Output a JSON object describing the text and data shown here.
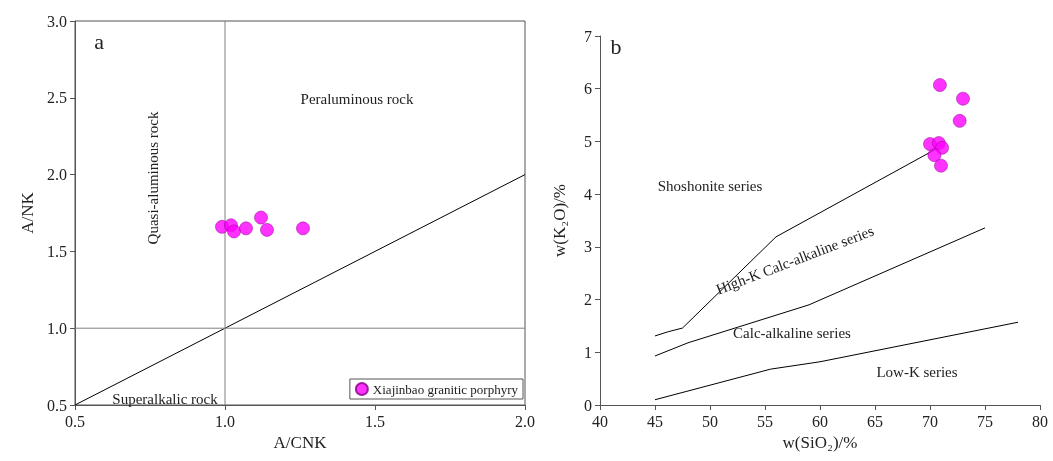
{
  "chart_data": [
    {
      "type": "scatter",
      "xlabel": "A/CNK",
      "ylabel": "A/NK",
      "xlim": [
        0.5,
        2.0
      ],
      "ylim": [
        0.5,
        3.0
      ],
      "xticks": [
        {
          "value": 0.5,
          "label": "0.5"
        },
        {
          "value": 1,
          "label": "1.0"
        },
        {
          "value": 1.5,
          "label": "1.5"
        },
        {
          "value": 2,
          "label": "2.0"
        }
      ],
      "yticks": [
        {
          "value": 0.5,
          "label": "0.5"
        },
        {
          "value": 1,
          "label": "1.0"
        },
        {
          "value": 1.5,
          "label": "1.5"
        },
        {
          "value": 2,
          "label": "2.0"
        },
        {
          "value": 2.5,
          "label": "2.5"
        },
        {
          "value": 3,
          "label": "3.0"
        }
      ],
      "series": [
        {
          "name": "Xiajinbao granitic porphyry",
          "color": "#ff00ff",
          "marker": "circle",
          "x": [
            0.99,
            1.02,
            1.03,
            1.07,
            1.12,
            1.14,
            1.26
          ],
          "values": [
            1.66,
            1.67,
            1.63,
            1.65,
            1.72,
            1.64,
            1.65
          ]
        },
        {
          "type": "line",
          "color": "#000000",
          "marker": "none",
          "x": [
            0.5,
            2.0
          ],
          "values": [
            0.5,
            2.0
          ]
        },
        {
          "type": "line",
          "color": "#808080",
          "marker": "none",
          "x": [
            1,
            1
          ],
          "values": [
            0.5,
            3.0
          ]
        },
        {
          "type": "line",
          "color": "#808080",
          "marker": "none",
          "x": [
            0.5,
            2.0
          ],
          "values": [
            1,
            1
          ]
        }
      ],
      "annotations": [
        "a",
        "Quasi-aluminous rock",
        "Peraluminous rock",
        "Superalkalic rock"
      ],
      "grid": false,
      "legend": "bottom right"
    },
    {
      "type": "scatter",
      "xlabel": "w(SiO₂)/%",
      "ylabel": "w(K₂O)/%",
      "xlim": [
        40,
        80
      ],
      "ylim": [
        0,
        7
      ],
      "xticks": [
        40,
        45,
        50,
        55,
        60,
        65,
        70,
        75,
        80
      ],
      "yticks": [
        0,
        1,
        2,
        3,
        4,
        5,
        6,
        7
      ],
      "series": [
        {
          "color": "#ff00ff",
          "marker": "circle",
          "x": [
            70.9,
            73.0,
            72.7,
            70.0,
            70.8,
            71.1,
            70.4,
            71.0
          ],
          "values": [
            6.07,
            5.81,
            5.39,
            4.95,
            4.97,
            4.88,
            4.74,
            4.54
          ]
        },
        {
          "type": "line",
          "color": "#000000",
          "marker": "none",
          "x": [
            45,
            46.2,
            47.5,
            56,
            70.5
          ],
          "values": [
            1.31,
            1.39,
            1.46,
            3.19,
            4.85
          ]
        },
        {
          "type": "line",
          "color": "#000000",
          "marker": "none",
          "x": [
            45,
            48,
            59,
            75
          ],
          "values": [
            0.93,
            1.18,
            1.9,
            3.36
          ]
        },
        {
          "type": "line",
          "color": "#000000",
          "marker": "none",
          "x": [
            45,
            55.5,
            60,
            78
          ],
          "values": [
            0.1,
            0.68,
            0.82,
            1.57
          ]
        }
      ],
      "annotations": [
        "b",
        "Shoshonite series",
        "High-K Calc-alkaline series",
        "Calc-alkaline series",
        "Low-K series"
      ],
      "grid": false,
      "legend": false
    }
  ]
}
